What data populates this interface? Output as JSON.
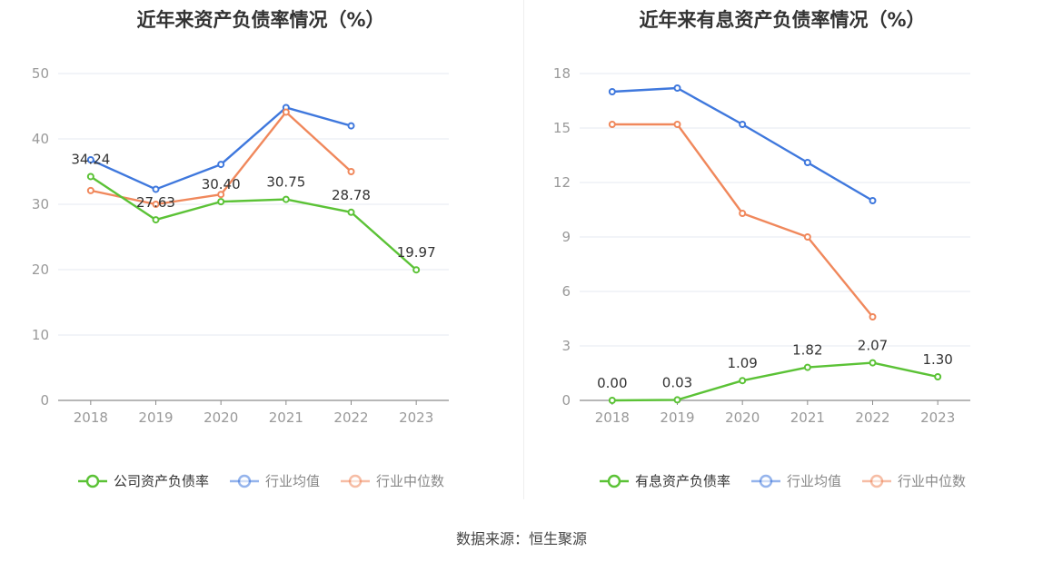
{
  "source": "数据来源：恒生聚源",
  "chart_data": [
    {
      "type": "line",
      "title": "近年来资产负债率情况（%）",
      "x": [
        "2018",
        "2019",
        "2020",
        "2021",
        "2022",
        "2023"
      ],
      "ylim": [
        0,
        50
      ],
      "yticks": [
        0,
        10,
        20,
        30,
        40,
        50
      ],
      "grid": true,
      "legend_position": "bottom",
      "series": [
        {
          "name": "公司资产负债率",
          "values": [
            34.24,
            27.63,
            30.4,
            30.75,
            28.78,
            19.97
          ],
          "labels": [
            "34.24",
            "27.63",
            "30.40",
            "30.75",
            "28.78",
            "19.97"
          ],
          "color": "#5bc236",
          "highlight": true
        },
        {
          "name": "行业均值",
          "values": [
            36.8,
            32.3,
            36.1,
            44.8,
            42.0,
            null
          ],
          "color": "#3f78dd"
        },
        {
          "name": "行业中位数",
          "values": [
            32.1,
            30.0,
            31.5,
            44.1,
            35.0,
            null
          ],
          "color": "#f0885c"
        }
      ]
    },
    {
      "type": "line",
      "title": "近年来有息资产负债率情况（%）",
      "x": [
        "2018",
        "2019",
        "2020",
        "2021",
        "2022",
        "2023"
      ],
      "ylim": [
        0,
        18
      ],
      "yticks": [
        0,
        3,
        6,
        9,
        12,
        15,
        18
      ],
      "grid": true,
      "legend_position": "bottom",
      "series": [
        {
          "name": "有息资产负债率",
          "values": [
            0.0,
            0.03,
            1.09,
            1.82,
            2.07,
            1.3
          ],
          "labels": [
            "0.00",
            "0.03",
            "1.09",
            "1.82",
            "2.07",
            "1.30"
          ],
          "color": "#5bc236",
          "highlight": true
        },
        {
          "name": "行业均值",
          "values": [
            17.0,
            17.2,
            15.2,
            13.1,
            11.0,
            null
          ],
          "color": "#3f78dd"
        },
        {
          "name": "行业中位数",
          "values": [
            15.2,
            15.2,
            10.3,
            9.0,
            4.6,
            null
          ],
          "color": "#f0885c"
        }
      ]
    }
  ]
}
